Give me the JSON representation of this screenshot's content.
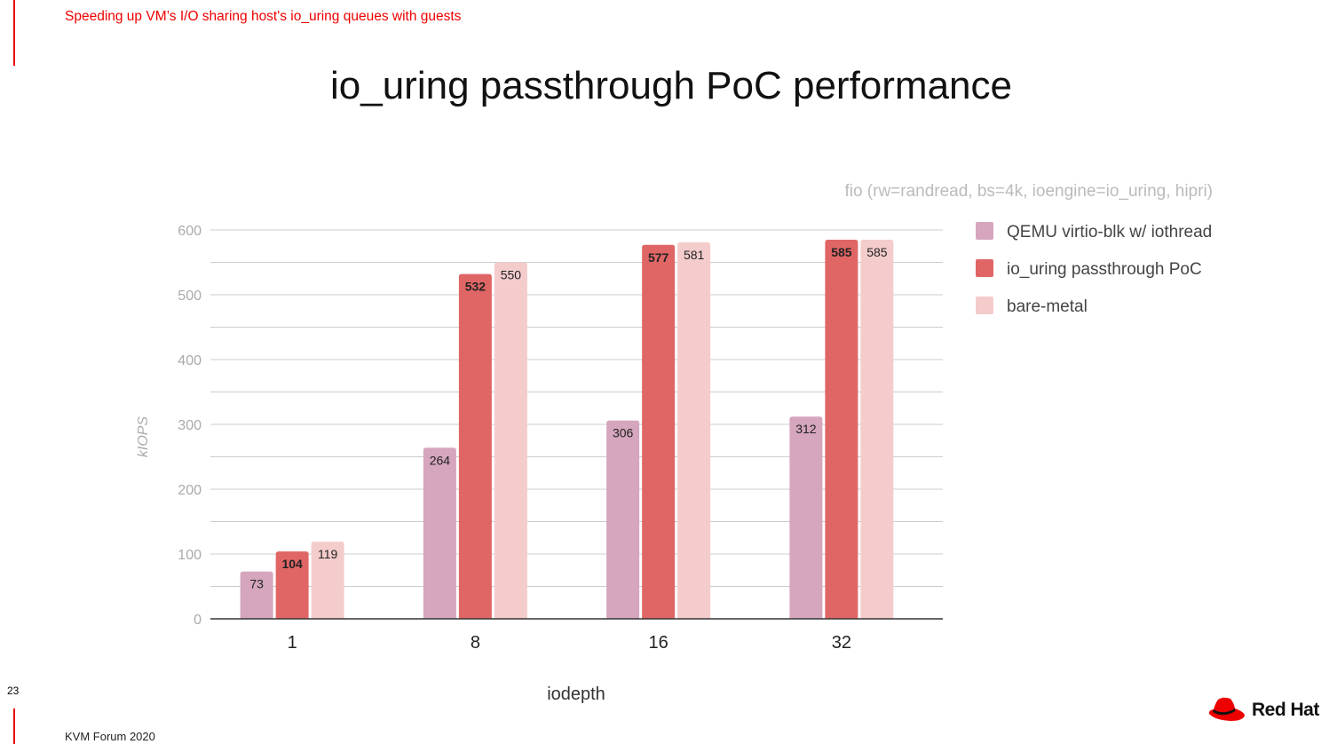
{
  "header": {
    "subtitle": "Speeding up VM’s I/O sharing host's io_uring queues with guests",
    "title": "io_uring passthrough PoC performance"
  },
  "footer": {
    "page_number": "23",
    "event": "KVM Forum 2020",
    "logo_text": "Red Hat"
  },
  "chart_data": {
    "type": "bar",
    "title": "fio (rw=randread, bs=4k, ioengine=io_uring, hipri)",
    "xlabel": "iodepth",
    "ylabel": "kIOPS",
    "ylim": [
      0,
      600
    ],
    "yticks": [
      "0",
      "100",
      "200",
      "300",
      "400",
      "500",
      "600"
    ],
    "categories": [
      "1",
      "8",
      "16",
      "32"
    ],
    "legend_position": "right",
    "series": [
      {
        "name": "QEMU virtio-blk w/ iothread",
        "color": "#d5a6bd",
        "values": [
          73,
          264,
          306,
          312
        ],
        "bold_labels": false
      },
      {
        "name": "io_uring passthrough PoC",
        "color": "#e06666",
        "values": [
          104,
          532,
          577,
          585
        ],
        "bold_labels": true
      },
      {
        "name": "bare-metal",
        "color": "#f4cccc",
        "values": [
          119,
          550,
          581,
          585
        ],
        "bold_labels": false
      }
    ]
  }
}
